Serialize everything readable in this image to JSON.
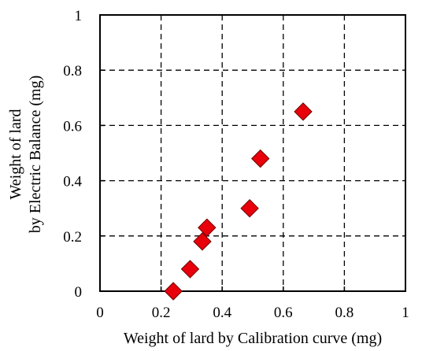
{
  "chart_data": {
    "type": "scatter",
    "title": "",
    "xlabel": "Weight of lard by Calibration curve (mg)",
    "ylabel_lines": [
      "Weight of lard",
      "by Electric Balance (mg)"
    ],
    "xlim": [
      0,
      1
    ],
    "ylim": [
      0,
      1
    ],
    "x_ticks": [
      "0",
      "0.2",
      "0.4",
      "0.6",
      "0.8",
      "1"
    ],
    "y_ticks": [
      "0",
      "0.2",
      "0.4",
      "0.6",
      "0.8",
      "1"
    ],
    "grid": true,
    "legend": "none",
    "marker": "diamond",
    "marker_color": "#e8000b",
    "points": [
      {
        "x": 0.24,
        "y": 0.0
      },
      {
        "x": 0.295,
        "y": 0.08
      },
      {
        "x": 0.335,
        "y": 0.18
      },
      {
        "x": 0.35,
        "y": 0.23
      },
      {
        "x": 0.49,
        "y": 0.3
      },
      {
        "x": 0.525,
        "y": 0.48
      },
      {
        "x": 0.665,
        "y": 0.65
      }
    ]
  }
}
